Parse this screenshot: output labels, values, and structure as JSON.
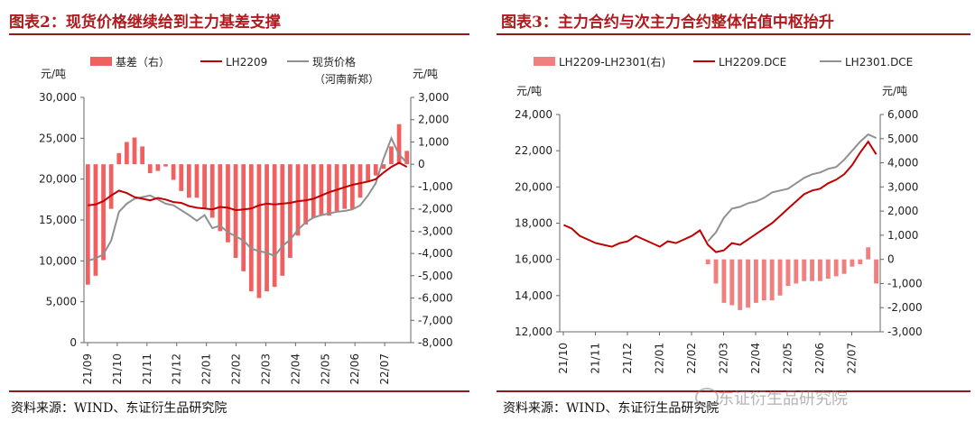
{
  "panels": [
    {
      "title": "图表2：现货价格继续给到主力基差支撑",
      "source": "资料来源：WIND、东证衍生品研究院",
      "chart_data": {
        "type": "line+bar",
        "left_unit": "元/吨",
        "right_unit": "元/吨",
        "legend": [
          "基差（右）",
          "LH2209",
          "现货价格",
          "（河南新郑）"
        ],
        "y_left_ticks": [
          "30,000",
          "25,000",
          "20,000",
          "15,000",
          "10,000",
          "5,000",
          "0"
        ],
        "y_right_ticks": [
          "3,000",
          "2,000",
          "1,000",
          "0",
          "-1,000",
          "-2,000",
          "-3,000",
          "-4,000",
          "-5,000",
          "-6,000",
          "-7,000",
          "-8,000"
        ],
        "x_ticks": [
          "21/09",
          "21/10",
          "21/11",
          "21/12",
          "22/01",
          "22/02",
          "22/03",
          "22/04",
          "22/05",
          "22/06",
          "22/07"
        ],
        "ylim_left": [
          0,
          30000
        ],
        "ylim_right": [
          -8000,
          3000
        ],
        "series": [
          {
            "name": "LH2209",
            "color": "#c00000",
            "values": [
              16800,
              16900,
              17300,
              18000,
              18600,
              18300,
              17800,
              17600,
              17400,
              17700,
              17500,
              17200,
              17100,
              16700,
              16500,
              16400,
              16300,
              16600,
              16500,
              16200,
              16300,
              16400,
              16800,
              17000,
              16900,
              17000,
              17100,
              17300,
              17400,
              17600,
              18000,
              18400,
              18700,
              19000,
              19300,
              19500,
              19700,
              20000,
              20800,
              21500,
              22000,
              21500
            ]
          },
          {
            "name": "现货价格",
            "color": "#909090",
            "values": [
              10000,
              10300,
              10800,
              12500,
              16000,
              17000,
              17600,
              17800,
              18000,
              17500,
              17000,
              16800,
              16200,
              15600,
              14900,
              15600,
              14000,
              14300,
              13500,
              13000,
              12500,
              11500,
              11200,
              11000,
              10600,
              11800,
              12600,
              13800,
              14700,
              15300,
              15600,
              15800,
              16000,
              16100,
              16300,
              16800,
              18000,
              19500,
              22500,
              25000,
              23000,
              22000
            ]
          },
          {
            "name": "基差（右）",
            "color": "#f06060",
            "values": [
              -5400,
              -5000,
              -4300,
              -2000,
              500,
              1000,
              1200,
              800,
              -400,
              -300,
              -100,
              -700,
              -1200,
              -1500,
              -1500,
              -2000,
              -2400,
              -3000,
              -3500,
              -4200,
              -4800,
              -5700,
              -6000,
              -5700,
              -5500,
              -5000,
              -4200,
              -3200,
              -2700,
              -2400,
              -2300,
              -2300,
              -2100,
              -2000,
              -2000,
              -1500,
              -800,
              -500,
              -200,
              800,
              1800,
              600
            ]
          }
        ]
      }
    },
    {
      "title": "图表3：主力合约与次主力合约整体估值中枢抬升",
      "source": "资料来源：WIND、东证衍生品研究院",
      "chart_data": {
        "type": "line+bar",
        "left_unit": "元/吨",
        "right_unit": "元/吨",
        "legend": [
          "LH2209-LH2301(右)",
          "LH2209.DCE",
          "LH2301.DCE"
        ],
        "y_left_ticks": [
          "24,000",
          "22,000",
          "20,000",
          "18,000",
          "16,000",
          "14,000",
          "12,000"
        ],
        "y_right_ticks": [
          "6,000",
          "5,000",
          "4,000",
          "3,000",
          "2,000",
          "1,000",
          "0",
          "-1,000",
          "-2,000",
          "-3,000"
        ],
        "x_ticks": [
          "21/10",
          "21/11",
          "21/12",
          "22/01",
          "22/02",
          "22/03",
          "22/04",
          "22/05",
          "22/06",
          "22/07"
        ],
        "ylim_left": [
          12000,
          24000
        ],
        "ylim_right": [
          -3000,
          6000
        ],
        "series": [
          {
            "name": "LH2209.DCE",
            "color": "#c00000",
            "values": [
              17900,
              17700,
              17300,
              17100,
              16900,
              16800,
              16700,
              16900,
              17000,
              17300,
              17100,
              16900,
              16700,
              17000,
              16900,
              17100,
              17300,
              17600,
              16800,
              16400,
              16500,
              16900,
              16800,
              17100,
              17400,
              17700,
              18000,
              18400,
              18800,
              19200,
              19600,
              19800,
              19900,
              20200,
              20400,
              20700,
              21200,
              21900,
              22500,
              21800
            ]
          },
          {
            "name": "LH2301.DCE",
            "color": "#909090",
            "values": [
              null,
              null,
              null,
              null,
              null,
              null,
              null,
              null,
              null,
              null,
              null,
              null,
              null,
              null,
              null,
              null,
              null,
              null,
              17000,
              17500,
              18300,
              18800,
              18900,
              19100,
              19200,
              19400,
              19700,
              19800,
              19900,
              20200,
              20500,
              20700,
              20800,
              21000,
              21100,
              21500,
              22000,
              22500,
              22900,
              22700
            ]
          },
          {
            "name": "LH2209-LH2301(右)",
            "color": "#f08080",
            "values": [
              null,
              null,
              null,
              null,
              null,
              null,
              null,
              null,
              null,
              null,
              null,
              null,
              null,
              null,
              null,
              null,
              null,
              null,
              -200,
              -1000,
              -1800,
              -1900,
              -2100,
              -2000,
              -1800,
              -1700,
              -1700,
              -1500,
              -1100,
              -1000,
              -900,
              -900,
              -900,
              -800,
              -700,
              -600,
              -300,
              -200,
              500,
              -1000
            ]
          }
        ]
      }
    }
  ],
  "watermark": "东证衍生品研究院"
}
